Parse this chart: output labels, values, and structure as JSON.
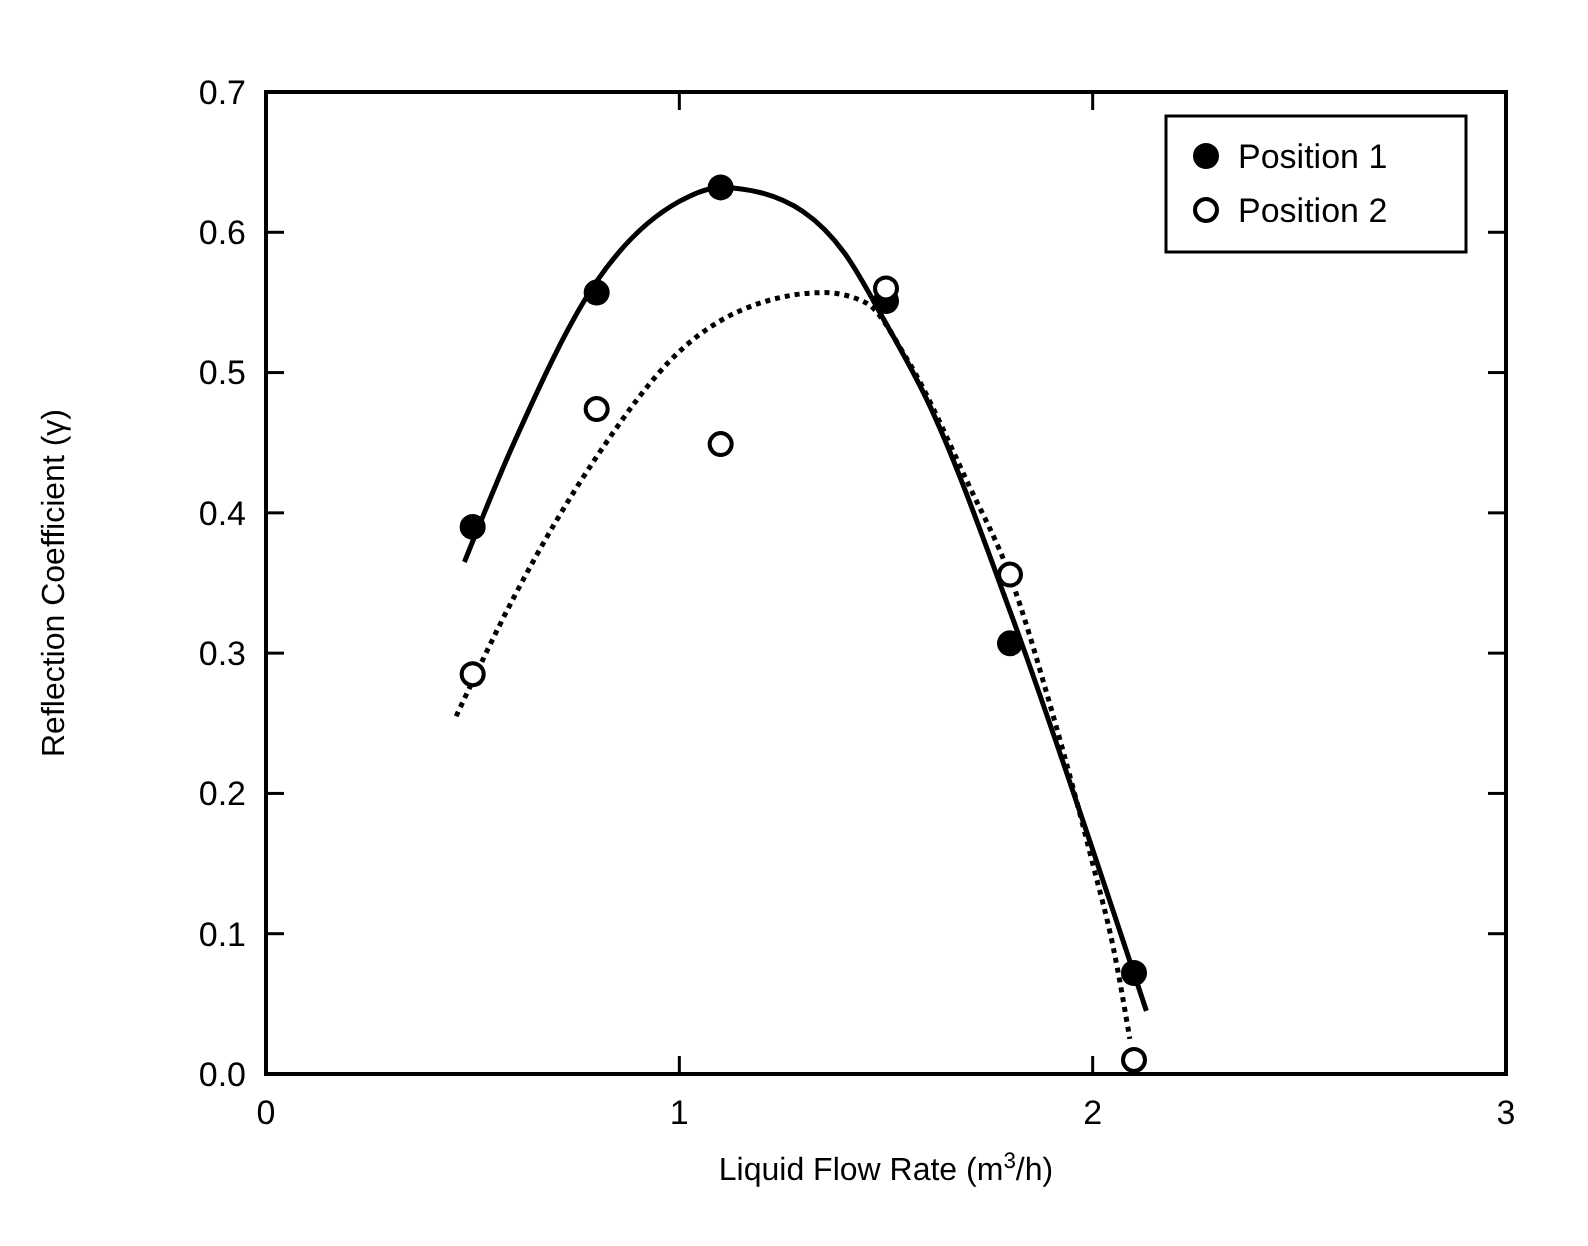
{
  "chart_data": {
    "type": "scatter",
    "xlabel": "Liquid Flow Rate (m$^{3}$/h)",
    "ylabel": "Reflection Coefficient (γ)",
    "xlim": [
      0,
      3
    ],
    "xticks": [
      0,
      1,
      2,
      3
    ],
    "ylim": [
      0,
      0.7
    ],
    "yticks": [
      {
        "value": 0,
        "label": "0.0"
      },
      0.1,
      0.2,
      0.3,
      0.4,
      0.5,
      0.6,
      0.7
    ],
    "grid": false,
    "legend": "top right",
    "series": [
      {
        "name": "Position 1",
        "color": "#000000",
        "marker": "circle",
        "x": [
          0.5,
          0.8,
          1.1,
          1.5,
          1.8,
          2.1
        ],
        "values": [
          0.39,
          0.557,
          0.632,
          0.551,
          0.307,
          0.072
        ]
      },
      {
        "name": "Position 2",
        "color": "#ffffff",
        "marker": "circle",
        "x": [
          0.5,
          0.8,
          1.1,
          1.5,
          1.8,
          2.1
        ],
        "values": [
          0.285,
          0.474,
          0.449,
          0.56,
          0.356,
          0.01
        ]
      },
      {
        "type": "line",
        "color": "#000000",
        "line_style": "solid",
        "marker": "none",
        "x": [
          0.48,
          0.6,
          0.8,
          1.0,
          1.1,
          1.2,
          1.4,
          1.5,
          1.6,
          1.8,
          2.0,
          2.13
        ],
        "values": [
          0.365,
          0.45,
          0.565,
          0.622,
          0.632,
          0.628,
          0.585,
          0.535,
          0.48,
          0.33,
          0.16,
          0.045
        ]
      },
      {
        "type": "line",
        "color": "#000000",
        "line_style": "dotted",
        "marker": "none",
        "x": [
          0.46,
          0.6,
          0.8,
          1.0,
          1.2,
          1.35,
          1.45,
          1.55,
          1.7,
          1.8,
          1.9,
          2.0,
          2.05,
          2.09
        ],
        "values": [
          0.255,
          0.34,
          0.44,
          0.515,
          0.55,
          0.557,
          0.55,
          0.51,
          0.42,
          0.355,
          0.26,
          0.15,
          0.09,
          0.025
        ]
      }
    ]
  }
}
